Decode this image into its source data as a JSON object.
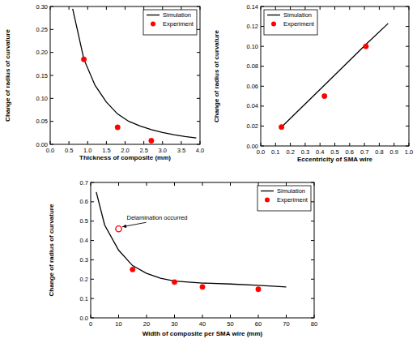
{
  "chart_data": [
    {
      "type": "line",
      "x_label": "Thickness of composite (mm)",
      "y_label": "Change of radius of curvature",
      "xlim": [
        0,
        4
      ],
      "ylim": [
        0,
        0.3
      ],
      "xticks": [
        {
          "value": 0,
          "label": "0.0"
        },
        0.5,
        {
          "value": 1,
          "label": "1.0"
        },
        1.5,
        {
          "value": 2,
          "label": "2.0"
        },
        2.5,
        {
          "value": 3,
          "label": "3.0"
        },
        3.5,
        {
          "value": 4,
          "label": "4.0"
        }
      ],
      "yticks": [
        {
          "value": 0,
          "label": "0.00"
        },
        0.05,
        {
          "value": 0.1,
          "label": "0.10"
        },
        0.15,
        {
          "value": 0.2,
          "label": "0.20"
        },
        0.25,
        {
          "value": 0.3,
          "label": "0.30"
        }
      ],
      "grid": false,
      "legend": "upper right",
      "series": [
        {
          "name": "Simulation",
          "type": "line",
          "color": "#000000",
          "line_style": "solid",
          "x": [
            0.6,
            0.9,
            1.2,
            1.5,
            1.8,
            2.1,
            2.4,
            2.7,
            3.0,
            3.3,
            3.6,
            3.9
          ],
          "values": [
            0.295,
            0.185,
            0.128,
            0.092,
            0.066,
            0.05,
            0.04,
            0.032,
            0.026,
            0.021,
            0.017,
            0.014
          ]
        },
        {
          "name": "Experiment",
          "type": "scatter",
          "color": "#ff0000",
          "marker": "circle",
          "x": [
            0.9,
            1.8,
            2.7
          ],
          "values": [
            0.185,
            0.037,
            0.008
          ]
        }
      ]
    },
    {
      "type": "line",
      "x_label": "Eccentricity of SMA wire",
      "y_label": "Change of radius of curvature",
      "xlim": [
        0,
        1
      ],
      "ylim": [
        0,
        0.14
      ],
      "xticks": [
        {
          "value": 0,
          "label": "0.0"
        },
        0.1,
        0.2,
        0.3,
        0.4,
        0.5,
        0.6,
        0.7,
        0.8,
        0.9,
        {
          "value": 1,
          "label": "1.0"
        }
      ],
      "yticks": [
        {
          "value": 0,
          "label": "0.00"
        },
        0.02,
        0.04,
        0.06,
        0.08,
        {
          "value": 0.1,
          "label": "0.10"
        },
        0.12,
        0.14
      ],
      "grid": false,
      "legend": "upper left",
      "series": [
        {
          "name": "Simulation",
          "type": "line",
          "color": "#000000",
          "line_style": "solid",
          "x": [
            0.14,
            0.43,
            0.71,
            0.86
          ],
          "values": [
            0.019,
            0.061,
            0.102,
            0.123
          ]
        },
        {
          "name": "Experiment",
          "type": "scatter",
          "color": "#ff0000",
          "marker": "circle",
          "x": [
            0.14,
            0.43,
            0.71
          ],
          "values": [
            0.019,
            0.05,
            0.1
          ]
        }
      ]
    },
    {
      "type": "line",
      "x_label": "Width of composite per SMA wire (mm)",
      "y_label": "Change of radius of curvature",
      "xlim": [
        0,
        80
      ],
      "ylim": [
        0,
        0.7
      ],
      "xticks": [
        0,
        10,
        20,
        30,
        40,
        50,
        60,
        70,
        80
      ],
      "yticks": [
        {
          "value": 0,
          "label": "0.0"
        },
        0.1,
        0.2,
        0.3,
        0.4,
        0.5,
        0.6,
        0.7
      ],
      "grid": false,
      "legend": "upper right",
      "series": [
        {
          "name": "Simulation",
          "type": "line",
          "color": "#000000",
          "line_style": "solid",
          "x": [
            2,
            5,
            10,
            15,
            20,
            25,
            30,
            40,
            50,
            60,
            70
          ],
          "values": [
            0.65,
            0.48,
            0.35,
            0.27,
            0.23,
            0.205,
            0.19,
            0.18,
            0.175,
            0.168,
            0.16
          ]
        },
        {
          "name": "Experiment",
          "type": "scatter",
          "color": "#ff0000",
          "marker": "circle",
          "x": [
            10,
            15,
            30,
            40,
            60
          ],
          "values": [
            0.46,
            0.25,
            0.185,
            0.16,
            0.148
          ]
        }
      ],
      "annotations": [
        {
          "text": "Delamination occurred",
          "x": 10,
          "y": 0.46
        }
      ]
    }
  ]
}
